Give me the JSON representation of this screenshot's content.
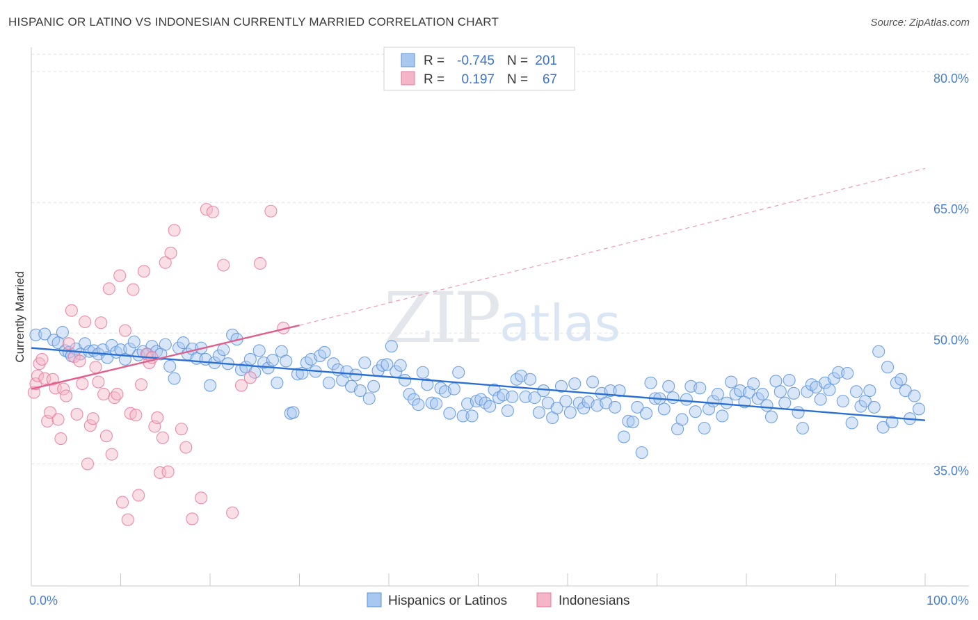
{
  "header": {
    "title": "HISPANIC OR LATINO VS INDONESIAN CURRENTLY MARRIED CORRELATION CHART",
    "source": "Source: ZipAtlas.com"
  },
  "watermark": {
    "zip": "ZIP",
    "atlas": "atlas"
  },
  "legend": {
    "rows": [
      {
        "r_label": "R =",
        "r_value": "-0.745",
        "n_label": "N =",
        "n_value": "201",
        "color": "#a9c8f0"
      },
      {
        "r_label": "R =",
        "r_value": "0.197",
        "n_label": "N =",
        "n_value": "67",
        "color": "#f5b5c8"
      }
    ]
  },
  "chart_data": {
    "type": "scatter",
    "title": "HISPANIC OR LATINO VS INDONESIAN CURRENTLY MARRIED CORRELATION CHART",
    "xlabel": "",
    "ylabel": "Currently Married",
    "xlim": [
      0,
      100
    ],
    "ylim": [
      21,
      82
    ],
    "x_tick_labels": [
      "0.0%",
      "100.0%"
    ],
    "y_ticks": [
      35,
      50,
      65,
      80
    ],
    "y_tick_labels": [
      "35.0%",
      "50.0%",
      "65.0%",
      "80.0%"
    ],
    "grid": true,
    "legend_position": "top-center",
    "series": [
      {
        "name": "Hispanics or Latinos",
        "color": "#5b93e0",
        "fill": "#a9c8f0",
        "trend": {
          "x": [
            0,
            100
          ],
          "y": [
            48.3,
            40.0
          ]
        },
        "points": [
          [
            0.5,
            49.8
          ],
          [
            1.5,
            49.9
          ],
          [
            2.5,
            49.2
          ],
          [
            3,
            48.9
          ],
          [
            3.5,
            50.1
          ],
          [
            3.8,
            48.0
          ],
          [
            4.2,
            47.8
          ],
          [
            4.5,
            47.4
          ],
          [
            5,
            48.2
          ],
          [
            5.5,
            47.6
          ],
          [
            6,
            48.8
          ],
          [
            6.5,
            47.9
          ],
          [
            7,
            48.0
          ],
          [
            7.5,
            47.6
          ],
          [
            8,
            48.1
          ],
          [
            8.5,
            47.2
          ],
          [
            9,
            48.6
          ],
          [
            9.5,
            47.8
          ],
          [
            10,
            48.1
          ],
          [
            10.5,
            47.0
          ],
          [
            11,
            48.2
          ],
          [
            11.5,
            49.0
          ],
          [
            12,
            47.5
          ],
          [
            12.5,
            47.9
          ],
          [
            13,
            47.6
          ],
          [
            13.5,
            48.5
          ],
          [
            14,
            47.9
          ],
          [
            14.5,
            47.6
          ],
          [
            15,
            48.7
          ],
          [
            15.5,
            46.2
          ],
          [
            16,
            44.8
          ],
          [
            16.5,
            48.3
          ],
          [
            17,
            48.9
          ],
          [
            17.5,
            47.6
          ],
          [
            18,
            48.2
          ],
          [
            18.5,
            47.1
          ],
          [
            19,
            48.3
          ],
          [
            19.5,
            47.0
          ],
          [
            20,
            44.0
          ],
          [
            20.5,
            46.6
          ],
          [
            21,
            47.4
          ],
          [
            21.5,
            48.1
          ],
          [
            22,
            46.5
          ],
          [
            22.5,
            49.8
          ],
          [
            23,
            49.3
          ],
          [
            23.5,
            45.8
          ],
          [
            24,
            46.1
          ],
          [
            24.5,
            47.0
          ],
          [
            25,
            45.5
          ],
          [
            25.5,
            48.0
          ],
          [
            26,
            46.6
          ],
          [
            26.5,
            46.0
          ],
          [
            27,
            46.9
          ],
          [
            27.5,
            44.3
          ],
          [
            28,
            47.9
          ],
          [
            28.5,
            46.8
          ],
          [
            29,
            40.8
          ],
          [
            29.3,
            40.9
          ],
          [
            29.8,
            45.3
          ],
          [
            30.3,
            45.4
          ],
          [
            30.8,
            46.6
          ],
          [
            31.3,
            47.0
          ],
          [
            31.8,
            45.6
          ],
          [
            32.3,
            47.4
          ],
          [
            32.8,
            47.8
          ],
          [
            33.3,
            44.3
          ],
          [
            33.8,
            46.5
          ],
          [
            34.3,
            45.8
          ],
          [
            34.8,
            44.6
          ],
          [
            35.3,
            45.6
          ],
          [
            35.8,
            43.9
          ],
          [
            36.3,
            45.2
          ],
          [
            36.8,
            43.4
          ],
          [
            37.3,
            46.6
          ],
          [
            37.8,
            42.5
          ],
          [
            38.3,
            43.9
          ],
          [
            38.8,
            45.7
          ],
          [
            39.3,
            46.3
          ],
          [
            39.8,
            46.4
          ],
          [
            40.3,
            48.5
          ],
          [
            40.8,
            45.6
          ],
          [
            41.3,
            46.3
          ],
          [
            41.8,
            44.6
          ],
          [
            42.3,
            43.0
          ],
          [
            42.8,
            42.4
          ],
          [
            43.3,
            41.8
          ],
          [
            43.8,
            45.5
          ],
          [
            44.3,
            44.1
          ],
          [
            44.8,
            42.0
          ],
          [
            45.3,
            41.9
          ],
          [
            45.8,
            43.7
          ],
          [
            46.3,
            43.3
          ],
          [
            46.8,
            40.8
          ],
          [
            47.3,
            43.6
          ],
          [
            47.8,
            45.5
          ],
          [
            48.3,
            40.5
          ],
          [
            48.8,
            41.9
          ],
          [
            49.3,
            40.5
          ],
          [
            49.8,
            42.2
          ],
          [
            50.3,
            42.4
          ],
          [
            50.8,
            42.0
          ],
          [
            51.3,
            41.6
          ],
          [
            51.8,
            43.5
          ],
          [
            52.3,
            42.6
          ],
          [
            52.8,
            42.9
          ],
          [
            53.3,
            41.1
          ],
          [
            53.8,
            42.7
          ],
          [
            54.3,
            44.7
          ],
          [
            54.8,
            45.1
          ],
          [
            55.3,
            42.7
          ],
          [
            55.8,
            44.7
          ],
          [
            56.3,
            42.6
          ],
          [
            56.8,
            40.9
          ],
          [
            57.3,
            43.4
          ],
          [
            57.8,
            42.0
          ],
          [
            58.3,
            40.3
          ],
          [
            58.8,
            41.4
          ],
          [
            59.3,
            43.9
          ],
          [
            59.8,
            42.2
          ],
          [
            60.3,
            40.9
          ],
          [
            60.8,
            44.2
          ],
          [
            61.3,
            42.0
          ],
          [
            61.8,
            41.4
          ],
          [
            62.3,
            42.1
          ],
          [
            62.8,
            44.4
          ],
          [
            63.3,
            41.7
          ],
          [
            63.8,
            43.1
          ],
          [
            64.3,
            42.0
          ],
          [
            64.8,
            43.4
          ],
          [
            65.3,
            41.5
          ],
          [
            65.8,
            43.4
          ],
          [
            66.3,
            38.1
          ],
          [
            66.8,
            39.9
          ],
          [
            67.3,
            39.8
          ],
          [
            67.8,
            41.5
          ],
          [
            68.3,
            36.3
          ],
          [
            68.8,
            40.8
          ],
          [
            69.3,
            44.3
          ],
          [
            69.8,
            42.5
          ],
          [
            70.3,
            42.5
          ],
          [
            70.8,
            41.3
          ],
          [
            71.3,
            43.9
          ],
          [
            71.8,
            42.6
          ],
          [
            72.3,
            39.0
          ],
          [
            72.8,
            40.1
          ],
          [
            73.3,
            42.4
          ],
          [
            73.8,
            43.9
          ],
          [
            74.3,
            41.0
          ],
          [
            74.8,
            43.7
          ],
          [
            75.3,
            39.1
          ],
          [
            75.8,
            41.3
          ],
          [
            76.3,
            42.2
          ],
          [
            76.8,
            43.0
          ],
          [
            77.3,
            40.5
          ],
          [
            77.8,
            42.0
          ],
          [
            78.3,
            44.4
          ],
          [
            78.8,
            43.0
          ],
          [
            79.3,
            43.4
          ],
          [
            79.8,
            42.1
          ],
          [
            80.3,
            43.2
          ],
          [
            80.8,
            44.2
          ],
          [
            81.3,
            42.5
          ],
          [
            81.8,
            43.0
          ],
          [
            82.3,
            41.7
          ],
          [
            82.8,
            40.4
          ],
          [
            83.3,
            44.5
          ],
          [
            83.8,
            43.3
          ],
          [
            84.3,
            42.0
          ],
          [
            84.8,
            44.6
          ],
          [
            85.3,
            43.1
          ],
          [
            85.8,
            40.9
          ],
          [
            86.3,
            39.1
          ],
          [
            86.8,
            43.3
          ],
          [
            87.3,
            44.1
          ],
          [
            87.8,
            43.8
          ],
          [
            88.3,
            42.4
          ],
          [
            88.8,
            44.3
          ],
          [
            89.3,
            43.5
          ],
          [
            89.8,
            44.8
          ],
          [
            90.3,
            45.5
          ],
          [
            90.8,
            42.2
          ],
          [
            91.3,
            45.4
          ],
          [
            91.8,
            39.7
          ],
          [
            92.3,
            43.3
          ],
          [
            92.8,
            41.6
          ],
          [
            93.3,
            42.2
          ],
          [
            93.8,
            43.4
          ],
          [
            94.3,
            41.5
          ],
          [
            94.8,
            47.9
          ],
          [
            95.3,
            39.2
          ],
          [
            95.8,
            46.1
          ],
          [
            96.3,
            39.8
          ],
          [
            96.8,
            44.3
          ],
          [
            97.3,
            44.7
          ],
          [
            97.8,
            43.4
          ],
          [
            98.3,
            40.2
          ],
          [
            98.8,
            42.8
          ],
          [
            99.3,
            41.3
          ]
        ]
      },
      {
        "name": "Indonesians",
        "color": "#e8799e",
        "fill": "#f5b5c8",
        "trend": {
          "x": [
            0,
            30
          ],
          "y": [
            43.6,
            50.9
          ],
          "dashed_to": [
            100,
            68.9
          ]
        },
        "points": [
          [
            0.3,
            43.2
          ],
          [
            0.5,
            44.2
          ],
          [
            0.7,
            45.1
          ],
          [
            0.9,
            46.5
          ],
          [
            1.2,
            47.0
          ],
          [
            1.5,
            44.8
          ],
          [
            1.8,
            39.9
          ],
          [
            2.1,
            40.9
          ],
          [
            2.4,
            44.7
          ],
          [
            2.7,
            43.7
          ],
          [
            3.0,
            40.1
          ],
          [
            3.3,
            37.9
          ],
          [
            3.6,
            43.6
          ],
          [
            3.9,
            42.8
          ],
          [
            4.2,
            48.8
          ],
          [
            4.5,
            52.6
          ],
          [
            4.8,
            47.3
          ],
          [
            5.1,
            40.7
          ],
          [
            5.4,
            46.8
          ],
          [
            5.7,
            44.2
          ],
          [
            6.0,
            51.3
          ],
          [
            6.3,
            35.0
          ],
          [
            6.6,
            39.4
          ],
          [
            6.9,
            40.2
          ],
          [
            7.2,
            46.1
          ],
          [
            7.5,
            44.4
          ],
          [
            7.8,
            51.2
          ],
          [
            8.1,
            43.0
          ],
          [
            8.4,
            38.2
          ],
          [
            8.7,
            55.1
          ],
          [
            9.0,
            36.1
          ],
          [
            9.3,
            42.6
          ],
          [
            9.6,
            43.0
          ],
          [
            9.9,
            56.6
          ],
          [
            10.2,
            30.6
          ],
          [
            10.5,
            50.3
          ],
          [
            10.8,
            28.6
          ],
          [
            11.1,
            40.8
          ],
          [
            11.4,
            55.0
          ],
          [
            11.7,
            40.6
          ],
          [
            12.0,
            31.4
          ],
          [
            12.3,
            44.1
          ],
          [
            12.6,
            57.1
          ],
          [
            12.9,
            47.6
          ],
          [
            13.2,
            46.6
          ],
          [
            13.5,
            47.2
          ],
          [
            13.8,
            39.3
          ],
          [
            14.1,
            40.3
          ],
          [
            14.4,
            34.0
          ],
          [
            14.7,
            38.0
          ],
          [
            15.0,
            58.1
          ],
          [
            15.3,
            34.1
          ],
          [
            15.6,
            59.2
          ],
          [
            16.0,
            61.8
          ],
          [
            16.8,
            39.0
          ],
          [
            17.3,
            36.9
          ],
          [
            18.0,
            28.7
          ],
          [
            19.0,
            31.1
          ],
          [
            19.6,
            64.2
          ],
          [
            20.3,
            63.9
          ],
          [
            21.5,
            57.8
          ],
          [
            22.5,
            29.4
          ],
          [
            23.5,
            44.0
          ],
          [
            24.5,
            44.9
          ],
          [
            25.6,
            58.0
          ],
          [
            26.8,
            64.0
          ],
          [
            28.2,
            50.6
          ]
        ]
      }
    ]
  },
  "bottom_legend": {
    "items": [
      {
        "label": "Hispanics or Latinos",
        "color": "#a9c8f0"
      },
      {
        "label": "Indonesians",
        "color": "#f5b5c8"
      }
    ]
  }
}
